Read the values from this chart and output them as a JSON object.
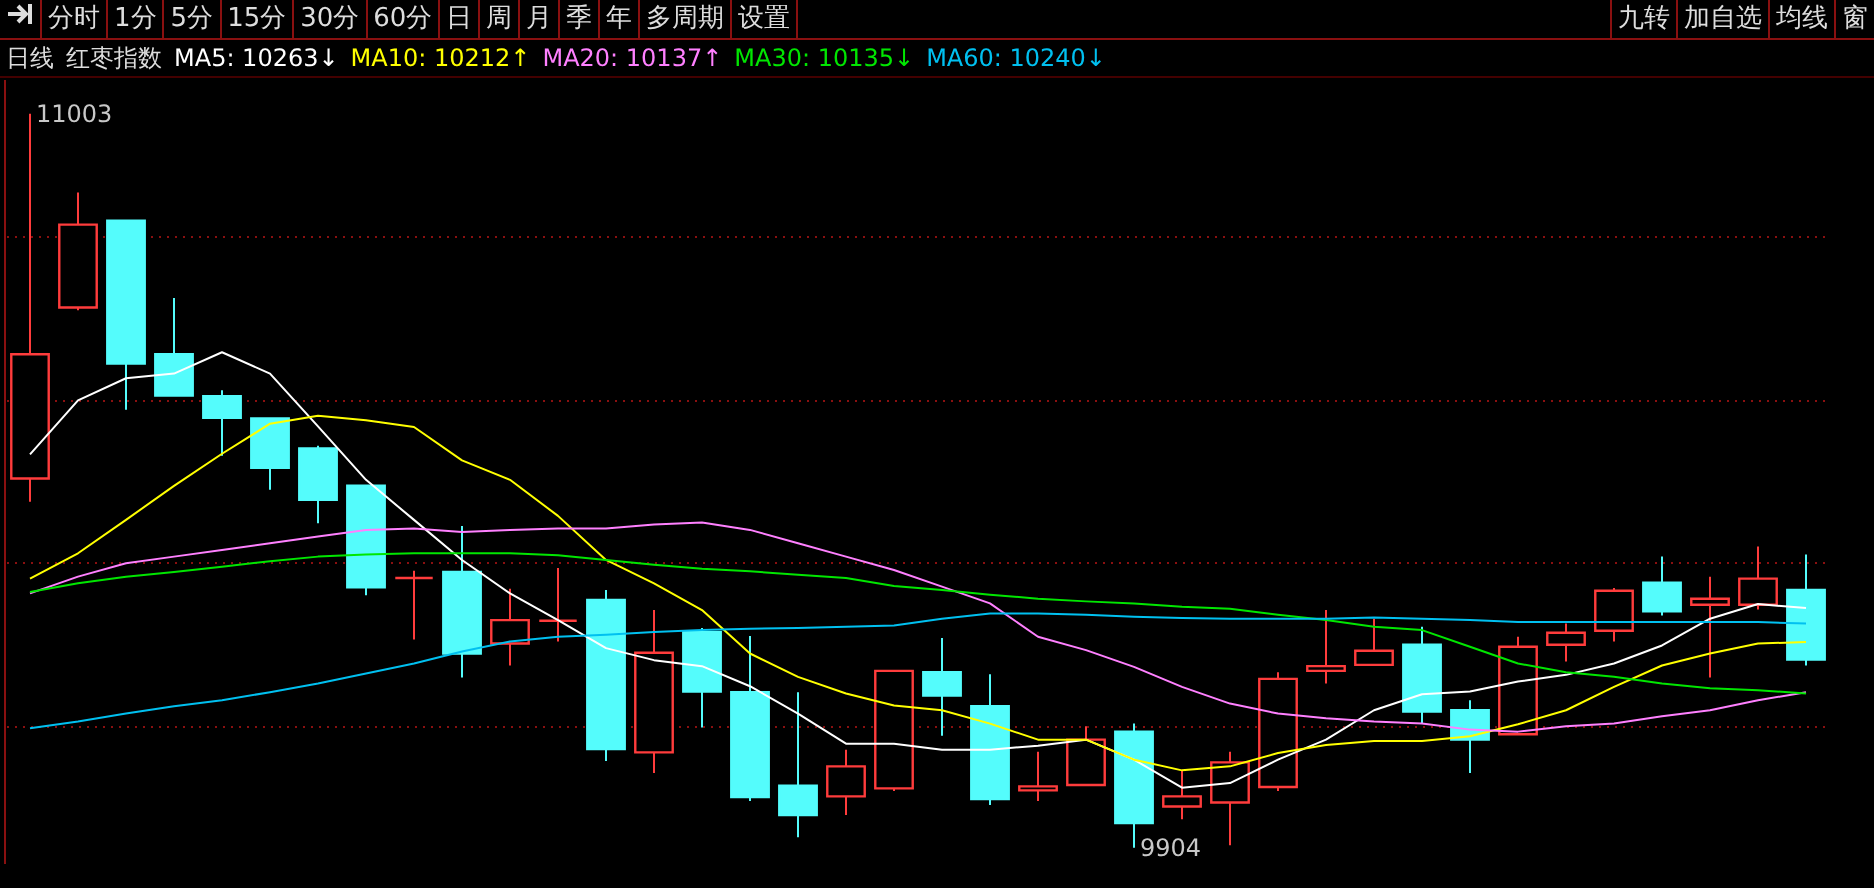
{
  "chart_data": {
    "type": "candlestick",
    "title": "日线",
    "subtitle": "红枣指数",
    "categories": [
      null,
      null,
      null,
      null,
      null,
      null,
      null,
      null,
      null,
      null,
      null,
      null,
      null,
      null,
      null,
      null,
      null,
      null,
      null,
      null,
      null,
      null,
      null,
      null,
      null,
      null,
      null,
      null,
      null,
      null,
      null,
      null,
      null,
      null,
      null,
      null,
      null,
      null
    ],
    "ohlc": [
      [
        10457,
        11003,
        10422,
        10643
      ],
      [
        10713,
        10885,
        10709,
        10837
      ],
      [
        10843,
        10843,
        10560,
        10629
      ],
      [
        10643,
        10727,
        10581,
        10581
      ],
      [
        10580,
        10589,
        10491,
        10548
      ],
      [
        10547,
        10547,
        10440,
        10473
      ],
      [
        10502,
        10506,
        10390,
        10425
      ],
      [
        10446,
        10446,
        10282,
        10294
      ],
      [
        10308,
        10319,
        10216,
        10308
      ],
      [
        10317,
        10386,
        10159,
        10195
      ],
      [
        10210,
        10292,
        10177,
        10245
      ],
      [
        10244,
        10323,
        10213,
        10244
      ],
      [
        10275,
        10290,
        10034,
        10052
      ],
      [
        10047,
        10260,
        10016,
        10196
      ],
      [
        10227,
        10233,
        10084,
        10138
      ],
      [
        10137,
        10221,
        9974,
        9980
      ],
      [
        9997,
        10137,
        9920,
        9953
      ],
      [
        9981,
        10051,
        9953,
        10026
      ],
      [
        9993,
        10169,
        9989,
        10169
      ],
      [
        10167,
        10218,
        10072,
        10132
      ],
      [
        10116,
        10164,
        9968,
        9977
      ],
      [
        9990,
        10048,
        9974,
        9996
      ],
      [
        9998,
        10086,
        9998,
        10066
      ],
      [
        10078,
        10090,
        9904,
        9941
      ],
      [
        9966,
        10019,
        9947,
        9981
      ],
      [
        9972,
        10048,
        9908,
        10032
      ],
      [
        9995,
        10167,
        9989,
        10157
      ],
      [
        10169,
        10260,
        10150,
        10176
      ],
      [
        10178,
        10247,
        10178,
        10199
      ],
      [
        10208,
        10235,
        10090,
        10108
      ],
      [
        10110,
        10125,
        10016,
        10066
      ],
      [
        10074,
        10220,
        10074,
        10205
      ],
      [
        10208,
        10240,
        10183,
        10226
      ],
      [
        10229,
        10293,
        10213,
        10289
      ],
      [
        10301,
        10340,
        10252,
        10258
      ],
      [
        10268,
        10310,
        10159,
        10277
      ],
      [
        10268,
        10355,
        10261,
        10307
      ],
      [
        10290,
        10343,
        10177,
        10186
      ]
    ],
    "colors": [
      "#ff3c3c",
      "#ff3c3c",
      "#54fcfc",
      "#54fcfc",
      "#54fcfc",
      "#54fcfc",
      "#54fcfc",
      "#54fcfc",
      "#ff3c3c",
      "#54fcfc",
      "#ff3c3c",
      "#ff3c3c",
      "#54fcfc",
      "#ff3c3c",
      "#54fcfc",
      "#54fcfc",
      "#54fcfc",
      "#ff3c3c",
      "#ff3c3c",
      "#54fcfc",
      "#54fcfc",
      "#ff3c3c",
      "#ff3c3c",
      "#54fcfc",
      "#ff3c3c",
      "#ff3c3c",
      "#ff3c3c",
      "#ff3c3c",
      "#ff3c3c",
      "#54fcfc",
      "#54fcfc",
      "#ff3c3c",
      "#ff3c3c",
      "#ff3c3c",
      "#54fcfc",
      "#ff3c3c",
      "#ff3c3c",
      "#54fcfc"
    ],
    "series": [
      {
        "name": "MA5: 10263↓",
        "type": "line",
        "color": "#ffffff",
        "values": [
          10493,
          10574,
          10607,
          10614,
          10646,
          10614,
          10535,
          10455,
          10395,
          10335,
          10285,
          10245,
          10203,
          10185,
          10176,
          10146,
          10105,
          10060,
          10060,
          10051,
          10051,
          10057,
          10066,
          10036,
          9994,
          10001,
          10036,
          10066,
          10110,
          10134,
          10138,
          10153,
          10163,
          10180,
          10207,
          10247,
          10269,
          10263
        ]
      },
      {
        "name": "MA10: 10212↑",
        "type": "line",
        "color": "#ffff00",
        "values": [
          10307,
          10345,
          10395,
          10446,
          10494,
          10539,
          10551,
          10544,
          10534,
          10484,
          10455,
          10401,
          10335,
          10300,
          10260,
          10195,
          10160,
          10135,
          10117,
          10110,
          10090,
          10066,
          10066,
          10036,
          10020,
          10026,
          10046,
          10058,
          10064,
          10064,
          10071,
          10089,
          10110,
          10145,
          10177,
          10195,
          10210,
          10212
        ]
      },
      {
        "name": "MA20: 10137↑",
        "type": "line",
        "color": "#ff80ff",
        "values": [
          10285,
          10310,
          10330,
          10340,
          10350,
          10360,
          10370,
          10380,
          10382,
          10377,
          10380,
          10382,
          10382,
          10388,
          10391,
          10380,
          10360,
          10340,
          10320,
          10295,
          10270,
          10220,
          10200,
          10175,
          10145,
          10120,
          10105,
          10098,
          10093,
          10090,
          10081,
          10078,
          10086,
          10090,
          10101,
          10110,
          10125,
          10137
        ]
      },
      {
        "name": "MA30: 10135↓",
        "type": "line",
        "color": "#00e600",
        "values": [
          10287,
          10300,
          10310,
          10317,
          10325,
          10333,
          10340,
          10343,
          10345,
          10345,
          10345,
          10342,
          10335,
          10328,
          10322,
          10318,
          10313,
          10308,
          10296,
          10290,
          10283,
          10277,
          10273,
          10270,
          10265,
          10262,
          10253,
          10245,
          10235,
          10230,
          10205,
          10180,
          10167,
          10160,
          10150,
          10143,
          10140,
          10135
        ]
      },
      {
        "name": "MA60: 10240↓",
        "type": "line",
        "color": "#00c0f0",
        "values": [
          10083,
          10093,
          10105,
          10116,
          10125,
          10137,
          10150,
          10165,
          10180,
          10198,
          10213,
          10220,
          10223,
          10227,
          10230,
          10232,
          10233,
          10235,
          10237,
          10247,
          10255,
          10255,
          10253,
          10250,
          10248,
          10247,
          10247,
          10247,
          10249,
          10247,
          10245,
          10242,
          10242,
          10242,
          10242,
          10242,
          10242,
          10240
        ]
      }
    ],
    "yticks": [
      {
        "value": 10086,
        "label": null
      },
      {
        "value": 10332,
        "label": null
      },
      {
        "value": 10574,
        "label": null
      },
      {
        "value": 10820,
        "label": null
      }
    ],
    "grid": true,
    "legend": "top left",
    "annotations": [
      "分时",
      "1分",
      "5分",
      "15分",
      "30分",
      "60分",
      "日",
      "周",
      "月",
      "季",
      "年",
      "多周期",
      "设置",
      "九转",
      "加自选",
      "均线",
      "窗",
      "11003",
      "9904"
    ]
  }
}
